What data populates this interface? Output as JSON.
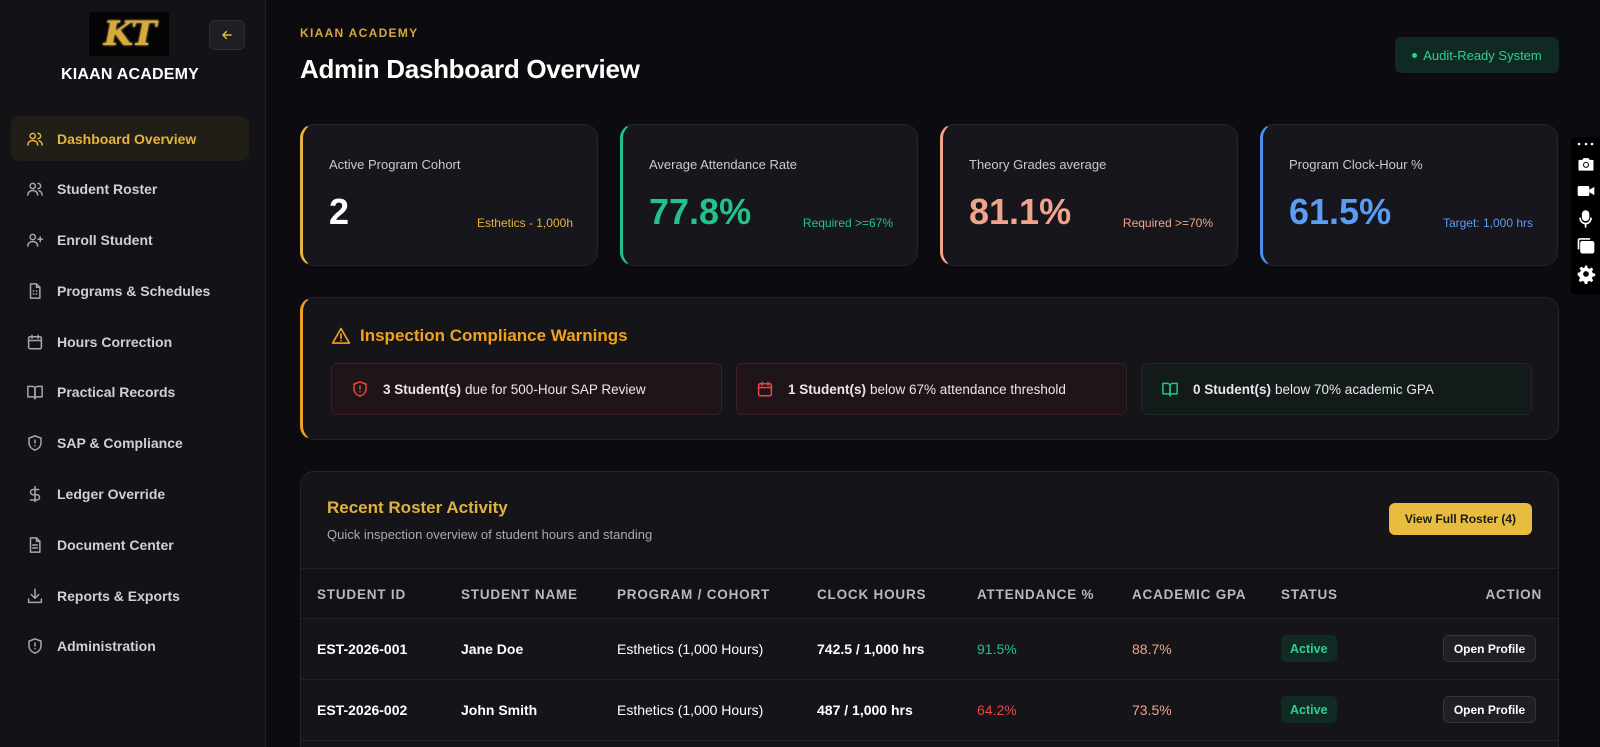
{
  "sidebar": {
    "logo_text": "KT",
    "brand": "KIAAN ACADEMY",
    "items": [
      {
        "label": "Dashboard Overview",
        "icon": "users-icon"
      },
      {
        "label": "Student Roster",
        "icon": "user-icon"
      },
      {
        "label": "Enroll Student",
        "icon": "user-plus-icon"
      },
      {
        "label": "Programs & Schedules",
        "icon": "document-icon"
      },
      {
        "label": "Hours Correction",
        "icon": "calendar-icon"
      },
      {
        "label": "Practical Records",
        "icon": "book-icon"
      },
      {
        "label": "SAP & Compliance",
        "icon": "shield-icon"
      },
      {
        "label": "Ledger Override",
        "icon": "dollar-icon"
      },
      {
        "label": "Document Center",
        "icon": "file-text-icon"
      },
      {
        "label": "Reports & Exports",
        "icon": "download-icon"
      },
      {
        "label": "Administration",
        "icon": "shield-icon"
      }
    ]
  },
  "header": {
    "eyebrow": "KIAAN ACADEMY",
    "title": "Admin Dashboard Overview",
    "badge": "Audit-Ready System"
  },
  "stats": [
    {
      "label": "Active Program Cohort",
      "value": "2",
      "sub": "Esthetics - 1,000h",
      "accent": "#e6b43c",
      "value_color": "#ffffff"
    },
    {
      "label": "Average Attendance Rate",
      "value": "77.8%",
      "sub": "Required >=67%",
      "accent": "#22c38a",
      "value_color": "#22c38a"
    },
    {
      "label": "Theory Grades average",
      "value": "81.1%",
      "sub": "Required >=70%",
      "accent": "#f2a48a",
      "value_color": "#f2a48a"
    },
    {
      "label": "Program Clock-Hour %",
      "value": "61.5%",
      "sub": "Target: 1,000 hrs",
      "accent": "#4a8ff0",
      "value_color": "#5b9cf5"
    }
  ],
  "warnings": {
    "title": "Inspection Compliance Warnings",
    "items": [
      {
        "count": "3 Student(s)",
        "text": "due for 500-Hour SAP Review"
      },
      {
        "count": "1 Student(s)",
        "text": "below 67% attendance threshold"
      },
      {
        "count": "0 Student(s)",
        "text": "below 70% academic GPA"
      }
    ]
  },
  "roster": {
    "title": "Recent Roster Activity",
    "subtitle": "Quick inspection overview of student hours and standing",
    "button": "View Full Roster (4)",
    "columns": [
      "STUDENT ID",
      "STUDENT NAME",
      "PROGRAM / COHORT",
      "CLOCK HOURS",
      "ATTENDANCE %",
      "ACADEMIC GPA",
      "STATUS",
      "ACTION"
    ],
    "rows": [
      {
        "id": "EST-2026-001",
        "name": "Jane Doe",
        "program": "Esthetics (1,000 Hours)",
        "hours": "742.5 / 1,000 hrs",
        "attendance": "91.5%",
        "attendance_color": "#22c38a",
        "gpa": "88.7%",
        "status": "Active",
        "action": "Open Profile"
      },
      {
        "id": "EST-2026-002",
        "name": "John Smith",
        "program": "Esthetics (1,000 Hours)",
        "hours": "487 / 1,000 hrs",
        "attendance": "64.2%",
        "attendance_color": "#ef4444",
        "gpa": "73.5%",
        "status": "Active",
        "action": "Open Profile"
      }
    ]
  },
  "floatbar": {
    "icons": [
      "more-icon",
      "camera-icon",
      "video-icon",
      "microphone-icon",
      "windows-icon",
      "gear-icon"
    ]
  }
}
